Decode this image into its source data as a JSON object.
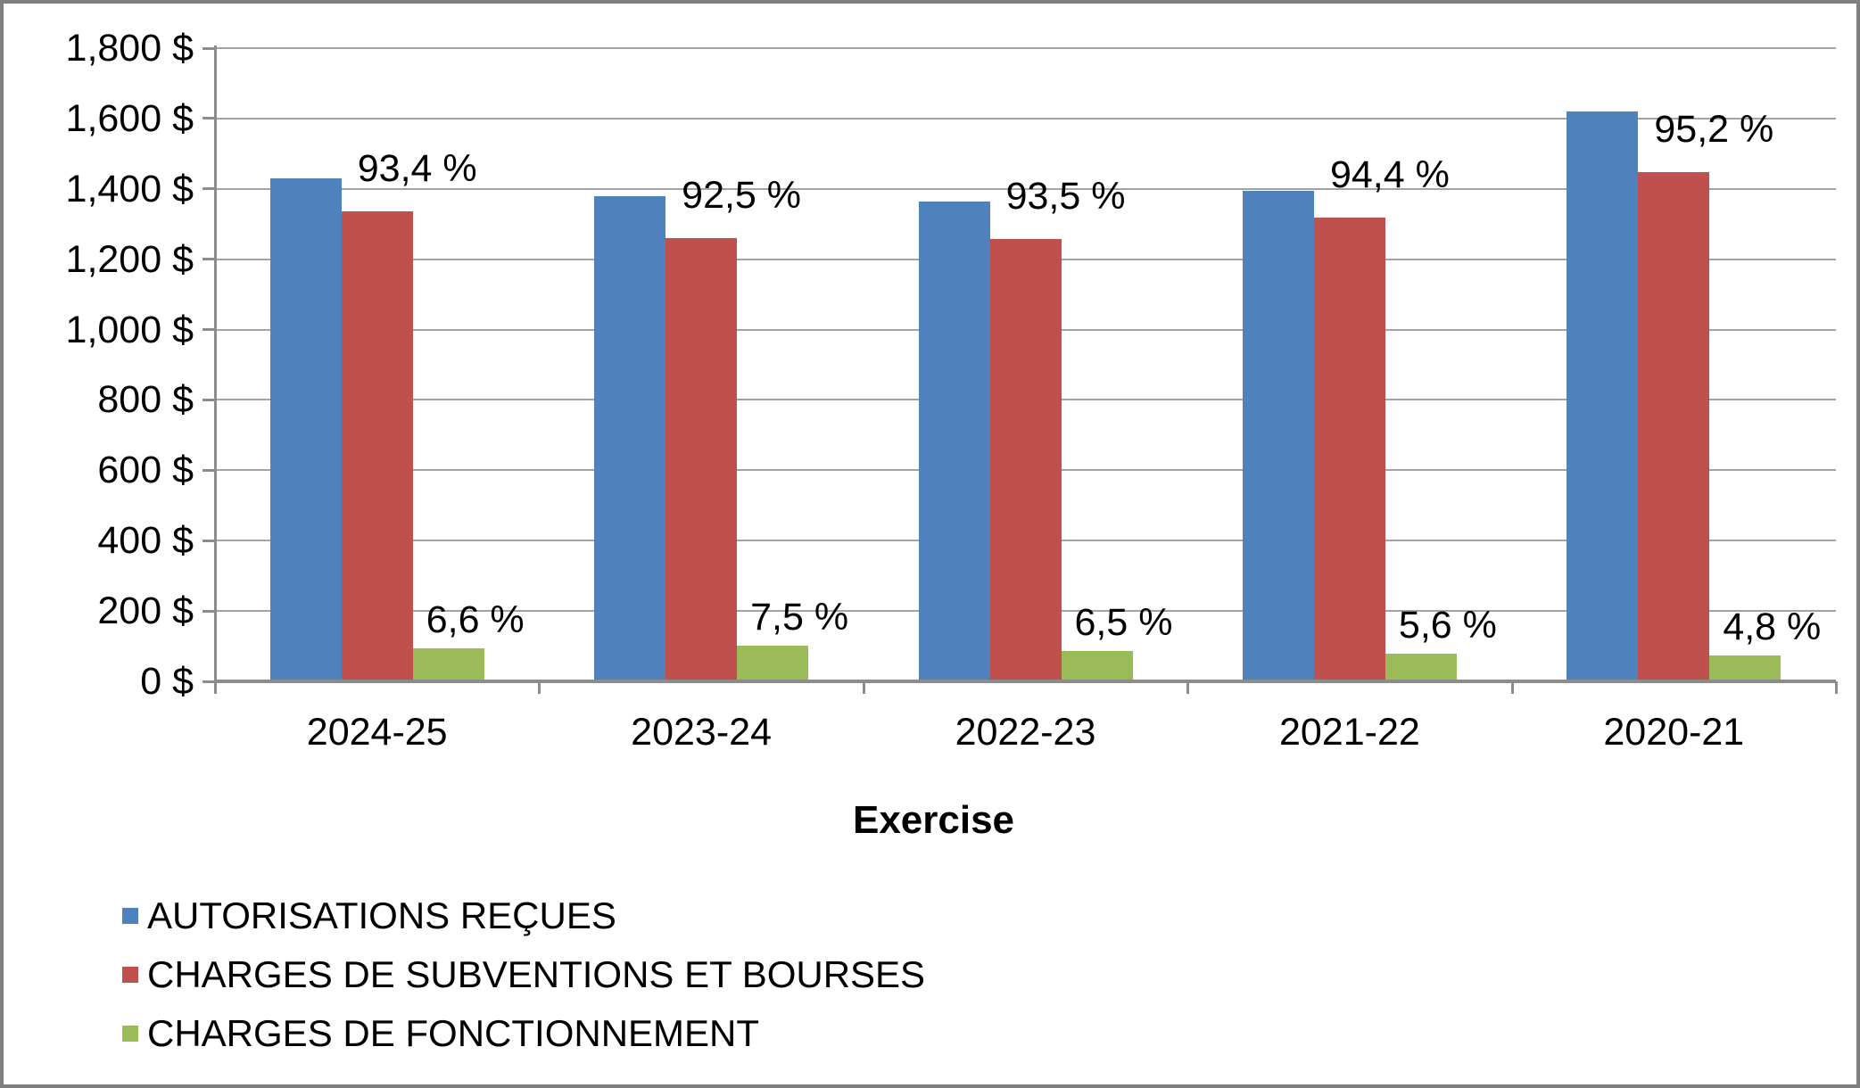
{
  "chart_data": {
    "type": "bar",
    "title": "",
    "xlabel": "Exercise",
    "ylabel": "",
    "categories": [
      "2024-25",
      "2023-24",
      "2022-23",
      "2021-22",
      "2020-21"
    ],
    "series": [
      {
        "name": "AUTORISATIONS REÇUES",
        "key": "autorisations-recues",
        "color": "#4F81BD",
        "values": [
          1430,
          1380,
          1365,
          1395,
          1620
        ],
        "labels": [
          "",
          "",
          "",
          "",
          ""
        ]
      },
      {
        "name": "CHARGES DE SUBVENTIONS ET BOURSES",
        "key": "charges-subventions-bourses",
        "color": "#C0504D",
        "values": [
          1335,
          1260,
          1258,
          1318,
          1448
        ],
        "labels": [
          "93,4 %",
          "92,5 %",
          "93,5 %",
          "94,4 %",
          "95,2 %"
        ]
      },
      {
        "name": "CHARGES DE FONCTIONNEMENT",
        "key": "charges-fonctionnement",
        "color": "#9BBB59",
        "values": [
          94,
          102,
          87,
          78,
          73
        ],
        "labels": [
          "6,6 %",
          "7,5 %",
          "6,5 %",
          "5,6 %",
          "4,8 %"
        ]
      }
    ],
    "y_axis": {
      "min": 0,
      "max": 1800,
      "step": 200,
      "tick_labels": [
        "0 $",
        "200 $",
        "400 $",
        "600 $",
        "800 $",
        "1,000 $",
        "1,200 $",
        "1,400 $",
        "1,600 $",
        "1,800 $"
      ]
    },
    "grid": true,
    "legend_position": "bottom-left",
    "colors": {
      "gridline": "#A3A3A3",
      "axis": "#8C8C8C",
      "border": "#7F7F7F",
      "text": "#000000"
    }
  }
}
